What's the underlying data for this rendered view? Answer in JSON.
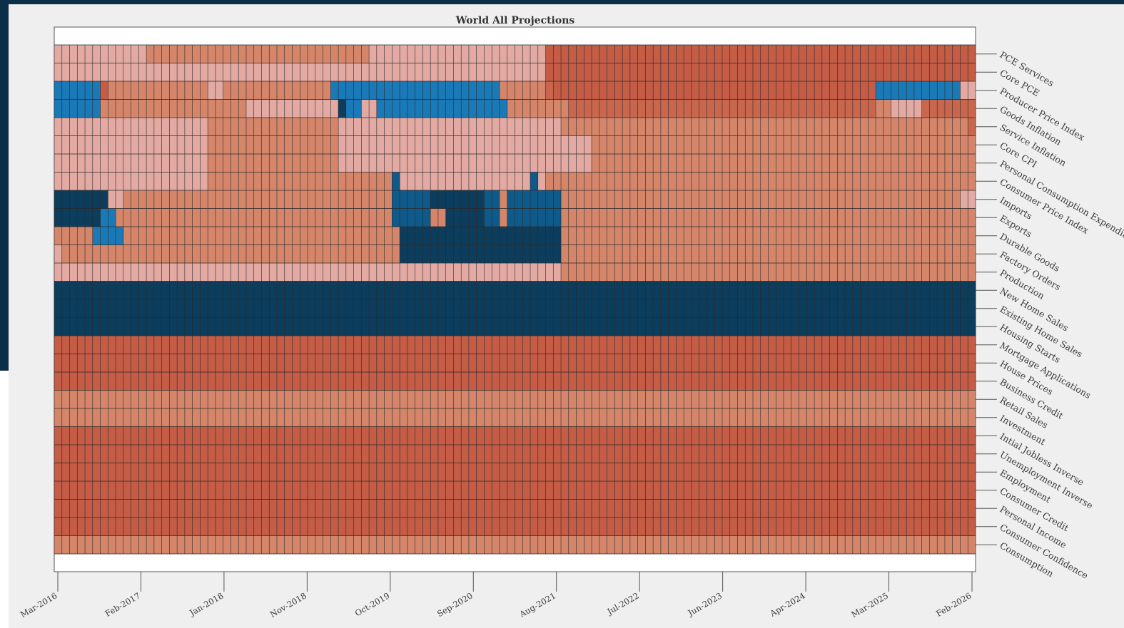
{
  "chart_data": {
    "type": "heatmap",
    "title": "World All Projections",
    "x_tick_labels": [
      "Mar-2016",
      "Feb-2017",
      "Jan-2018",
      "Nov-2018",
      "Oct-2019",
      "Sep-2020",
      "Aug-2021",
      "Jul-2022",
      "Jun-2023",
      "Apr-2024",
      "Mar-2025",
      "Feb-2026"
    ],
    "x_range": [
      "Mar-2016",
      "Feb-2026"
    ],
    "columns": 120,
    "rows": [
      "PCE Services",
      "Core PCE",
      "Producer Price Index",
      "Goods Inflation",
      "Service Inflation",
      "Core CPI",
      "Personal Consumption Expenditure",
      "Consumer Price Index",
      "Imports",
      "Exports",
      "Durable Goods",
      "Factory Orders",
      "Production",
      "New Home Sales",
      "Existing Home Sales",
      "Housing Starts",
      "Mortgage Applications",
      "House Prices",
      "Business Credit",
      "Retail Sales",
      "Investment",
      "Intial Jobless Inverse",
      "Unemployment Inverse",
      "Employment",
      "Consumer Credit",
      "Personal Income",
      "Consumer Confidence",
      "Consumption"
    ],
    "color_scale": {
      "0": "#0d3d5c",
      "1": "#0e5a8a",
      "2": "#1a79b7",
      "3": "#e3a9a3",
      "4": "#d5866a",
      "5": "#c9674e",
      "6": "#c45c46"
    },
    "grid": true,
    "legend": "none",
    "matrix": [
      "333333333333444444444444444444444444444443333333333333333333333366666666666666666666666666666666666666666666666666666666666666666666666666666666",
      "333333333333333333333333333333333333333333333333333333333333333366666666666666666666666666666666666666666666666666666666666666666666666666666666",
      "222222644444444444443344444444444444222222222222222222222244444456666666666666666666666666666666666666666662222222222233333335555555555555555553",
      "222222444444444444444444433333333333302233222222222222222224444444455555555555555555555555555555555555555554433335555555555555555555555555555553",
      "333333333333333333334444444444444444433333333333333333333333333333444444444444444444444444444444444444444444444444444445555555555555555555555554",
      "333333333333333333334444444444444444433333333333333333333333333333333344444444444444444444444444444444444444444444444444444444444444444444444444",
      "333333333333333333334444444444444444433333333333333333333333333333333344444444444444444444444444444444444444444444444444444444444444444444444444",
      "333333333333333333334444444444444444444444441333333333333333331344444444444444444444444444444444444444444444444444444444444444444444444444444444",
      "000000033444444444444444444444444444444444441111100000001141111111444444444444444444444444444444444444444444444444444433311144111334444444444444",
      "000000224444444444444444444444444444444444441111144000001141111111444444444444444444444444444444444444444444444444444444442224444444444444444444",
      "444442222444444444444444444444444444444444444000000000000000000000444444444444444444444444444444444444444444444444444444444444444444444444444444",
      "344444444444444444444444444444444444444444444000000000000000000000444444444444444444444444444444444444444444444444444444444444444444444444444444",
      "333333333333333333333333333333333333333333333333333333333333333333444444444444444444444444444444444444444444444444444444444444444444444444444444",
      "000000000000000000000000000000000000000000000000000000000000000000000000000000000000000000000000000000000000000000000000000000000000000000000000",
      "000000000000000000000000000000000000000000000000000000000000000000000000000000000000000000000000000000000000000000000000000000000000000000000000",
      "000000000000000000000000000000000000000000000000000000000000000000000000000000000000000000000000000000000000000000000000000000000000000000000000",
      "666666666666666666666666666666666666666666666666666666666666666666666666666666666666666666666666666666666666666666666666666666666666666666666666",
      "666666666666666666666666666666666666666666666666666666666666666666666666666666666666666666666666666666666666666666666666666666666666666666666666",
      "666666666666666666666666666666666666666666666666666666666666666666666666666666666666666666666666666666666666666666666666666666666666666666666666",
      "444444444444444444444444444444444444444444444444444444444444444444444444444444444444444444444444444444444444444444444444444444444444444444444444",
      "444444444444444444444444444444444444444444444444444444444444444444444444444444444444444444444444444444444444444444444444444444444444444444444444",
      "666666666666666666666666666666666666666666666666666666666666666666666666666666666666666666666666666666666666666666666666666666666666666666666666",
      "666666666666666666666666666666666666666666666666666666666666666666666666666666666666666666666666666666666666666666666666666666666666666666666666",
      "666666666666666666666666666666666666666666666666666666666666666666666666666666666666666666666666666666666666666666666666666666666666666666666666",
      "666666666666666666666666666666666666666666666666666666666666666666666666666666666666666666666666666666666666666666666666666666666666666666666666",
      "666666666666666666666666666666666666666666666666666666666666666666666666666666666666666666666666666666666666666666666666666666666666666666666666",
      "666666666666666666666666666666666666666666666666666666666666666666666666666666666666666666666666666666666666666666666666666666666666666666666666",
      "444444444444444444444444444444444444444444444444444444444444444444444444444444444444444444444444444444444444444444444444444444444444444444444444"
    ]
  }
}
